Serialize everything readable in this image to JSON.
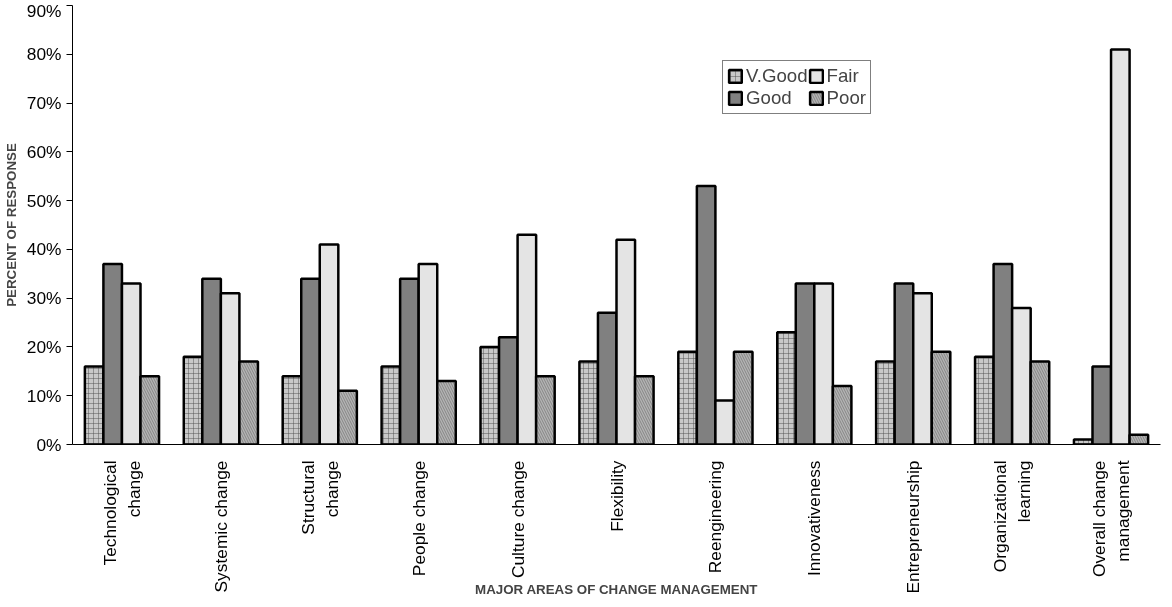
{
  "chart_data": {
    "type": "bar",
    "xlabel": "MAJOR AREAS OF CHANGE MANAGEMENT",
    "ylabel": "PERCENT OF RESPONSE",
    "categories": [
      "Technological change",
      "Systemic change",
      "Structural change",
      "People change",
      "Culture change",
      "Flexibility",
      "Reengineering",
      "Innovativeness",
      "Entrepreneurship",
      "Organizational learning",
      "Overall change management"
    ],
    "series": [
      {
        "name": "V.Good",
        "color": "#c8c8c8",
        "values": [
          16,
          18,
          14,
          16,
          20,
          17,
          19,
          23,
          17,
          18,
          1
        ]
      },
      {
        "name": "Good",
        "color": "#808080",
        "values": [
          37,
          34,
          34,
          34,
          22,
          27,
          53,
          33,
          33,
          37,
          16
        ]
      },
      {
        "name": "Fair",
        "color": "#e4e4e4",
        "values": [
          33,
          31,
          41,
          37,
          43,
          42,
          9,
          33,
          31,
          28,
          81
        ]
      },
      {
        "name": "Poor",
        "color": "#b4b4b4",
        "values": [
          14,
          17,
          11,
          13,
          14,
          14,
          19,
          12,
          19,
          17,
          2
        ]
      }
    ],
    "ylim": [
      0,
      90
    ],
    "yticks": [
      {
        "value": 0,
        "label": "0%"
      },
      {
        "value": 10,
        "label": "10%"
      },
      {
        "value": 20,
        "label": "20%"
      },
      {
        "value": 30,
        "label": "30%"
      },
      {
        "value": 40,
        "label": "40%"
      },
      {
        "value": 50,
        "label": "50%"
      },
      {
        "value": 60,
        "label": "60%"
      },
      {
        "value": 70,
        "label": "70%"
      },
      {
        "value": 80,
        "label": "80%"
      },
      {
        "value": 90,
        "label": "90%"
      }
    ],
    "grid": false,
    "legend": "top right"
  }
}
